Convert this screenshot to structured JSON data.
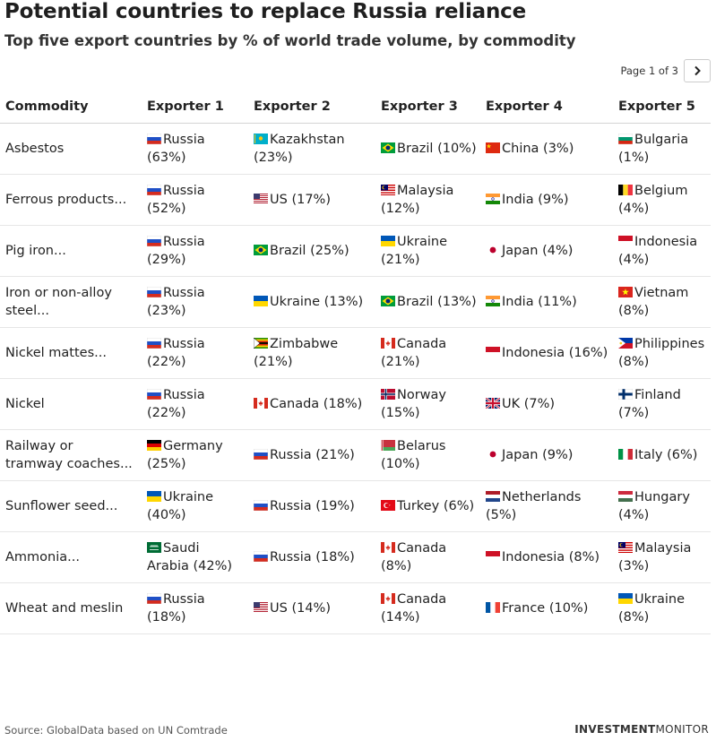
{
  "title": "Potential countries to replace Russia reliance",
  "subtitle": "Top five export countries by % of world trade volume, by commodity",
  "pagination": {
    "label": "Page 1 of 3"
  },
  "columns": [
    "Commodity",
    "Exporter 1",
    "Exporter 2",
    "Exporter 3",
    "Exporter 4",
    "Exporter 5"
  ],
  "rows": [
    {
      "commodity": "Asbestos",
      "exporters": [
        {
          "country": "Russia",
          "pct": "(63%)",
          "flag": "russia"
        },
        {
          "country": "Kazakhstan",
          "pct": "(23%)",
          "flag": "kazakhstan"
        },
        {
          "country": "Brazil",
          "pct": "(10%)",
          "flag": "brazil"
        },
        {
          "country": "China",
          "pct": "(3%)",
          "flag": "china"
        },
        {
          "country": "Bulgaria",
          "pct": "(1%)",
          "flag": "bulgaria"
        }
      ]
    },
    {
      "commodity": "Ferrous products...",
      "exporters": [
        {
          "country": "Russia",
          "pct": "(52%)",
          "flag": "russia"
        },
        {
          "country": "US",
          "pct": "(17%)",
          "flag": "us"
        },
        {
          "country": "Malaysia",
          "pct": "(12%)",
          "flag": "malaysia"
        },
        {
          "country": "India",
          "pct": "(9%)",
          "flag": "india"
        },
        {
          "country": "Belgium",
          "pct": "(4%)",
          "flag": "belgium"
        }
      ]
    },
    {
      "commodity": "Pig iron...",
      "exporters": [
        {
          "country": "Russia",
          "pct": "(29%)",
          "flag": "russia"
        },
        {
          "country": "Brazil",
          "pct": "(25%)",
          "flag": "brazil"
        },
        {
          "country": "Ukraine",
          "pct": "(21%)",
          "flag": "ukraine"
        },
        {
          "country": "Japan",
          "pct": "(4%)",
          "flag": "japan"
        },
        {
          "country": "Indonesia",
          "pct": "(4%)",
          "flag": "indonesia"
        }
      ]
    },
    {
      "commodity": "Iron or non-alloy steel...",
      "exporters": [
        {
          "country": "Russia",
          "pct": "(23%)",
          "flag": "russia"
        },
        {
          "country": "Ukraine",
          "pct": "(13%)",
          "flag": "ukraine"
        },
        {
          "country": "Brazil",
          "pct": "(13%)",
          "flag": "brazil"
        },
        {
          "country": "India",
          "pct": "(11%)",
          "flag": "india"
        },
        {
          "country": "Vietnam",
          "pct": "(8%)",
          "flag": "vietnam"
        }
      ]
    },
    {
      "commodity": "Nickel mattes...",
      "exporters": [
        {
          "country": "Russia",
          "pct": "(22%)",
          "flag": "russia"
        },
        {
          "country": "Zimbabwe",
          "pct": "(21%)",
          "flag": "zimbabwe"
        },
        {
          "country": "Canada",
          "pct": "(21%)",
          "flag": "canada"
        },
        {
          "country": "Indonesia",
          "pct": "(16%)",
          "flag": "indonesia"
        },
        {
          "country": "Philippines",
          "pct": "(8%)",
          "flag": "philippines"
        }
      ]
    },
    {
      "commodity": "Nickel",
      "exporters": [
        {
          "country": "Russia",
          "pct": "(22%)",
          "flag": "russia"
        },
        {
          "country": "Canada",
          "pct": "(18%)",
          "flag": "canada"
        },
        {
          "country": "Norway",
          "pct": "(15%)",
          "flag": "norway"
        },
        {
          "country": "UK",
          "pct": "(7%)",
          "flag": "uk"
        },
        {
          "country": "Finland",
          "pct": "(7%)",
          "flag": "finland"
        }
      ]
    },
    {
      "commodity": "Railway or tramway coaches...",
      "exporters": [
        {
          "country": "Germany",
          "pct": "(25%)",
          "flag": "germany"
        },
        {
          "country": "Russia",
          "pct": "(21%)",
          "flag": "russia"
        },
        {
          "country": "Belarus",
          "pct": "(10%)",
          "flag": "belarus"
        },
        {
          "country": "Japan",
          "pct": "(9%)",
          "flag": "japan"
        },
        {
          "country": "Italy",
          "pct": "(6%)",
          "flag": "italy"
        }
      ]
    },
    {
      "commodity": "Sunflower seed...",
      "exporters": [
        {
          "country": "Ukraine",
          "pct": "(40%)",
          "flag": "ukraine"
        },
        {
          "country": "Russia",
          "pct": "(19%)",
          "flag": "russia"
        },
        {
          "country": "Turkey",
          "pct": "(6%)",
          "flag": "turkey"
        },
        {
          "country": "Netherlands",
          "pct": "(5%)",
          "flag": "netherlands"
        },
        {
          "country": "Hungary",
          "pct": "(4%)",
          "flag": "hungary"
        }
      ]
    },
    {
      "commodity": "Ammonia...",
      "exporters": [
        {
          "country": "Saudi Arabia",
          "pct": "(42%)",
          "flag": "saudi"
        },
        {
          "country": "Russia",
          "pct": "(18%)",
          "flag": "russia"
        },
        {
          "country": "Canada",
          "pct": "(8%)",
          "flag": "canada"
        },
        {
          "country": "Indonesia",
          "pct": "(8%)",
          "flag": "indonesia"
        },
        {
          "country": "Malaysia",
          "pct": "(3%)",
          "flag": "malaysia"
        }
      ]
    },
    {
      "commodity": "Wheat and meslin",
      "exporters": [
        {
          "country": "Russia",
          "pct": "(18%)",
          "flag": "russia"
        },
        {
          "country": "US",
          "pct": "(14%)",
          "flag": "us"
        },
        {
          "country": "Canada",
          "pct": "(14%)",
          "flag": "canada"
        },
        {
          "country": "France",
          "pct": "(10%)",
          "flag": "france"
        },
        {
          "country": "Ukraine",
          "pct": "(8%)",
          "flag": "ukraine"
        }
      ]
    }
  ],
  "footer": {
    "source": "Source: GlobalData based on UN Comtrade",
    "logo_part1": "INVESTMENT",
    "logo_part2": "MONITOR"
  },
  "chart_data": {
    "type": "table",
    "title": "Potential countries to replace Russia reliance",
    "subtitle": "Top five export countries by % of world trade volume, by commodity",
    "columns": [
      "Commodity",
      "Exporter 1",
      "Exporter 2",
      "Exporter 3",
      "Exporter 4",
      "Exporter 5"
    ],
    "rows": [
      [
        "Asbestos",
        "Russia (63%)",
        "Kazakhstan (23%)",
        "Brazil (10%)",
        "China (3%)",
        "Bulgaria (1%)"
      ],
      [
        "Ferrous products...",
        "Russia (52%)",
        "US (17%)",
        "Malaysia (12%)",
        "India (9%)",
        "Belgium (4%)"
      ],
      [
        "Pig iron...",
        "Russia (29%)",
        "Brazil (25%)",
        "Ukraine (21%)",
        "Japan (4%)",
        "Indonesia (4%)"
      ],
      [
        "Iron or non-alloy steel...",
        "Russia (23%)",
        "Ukraine (13%)",
        "Brazil (13%)",
        "India (11%)",
        "Vietnam (8%)"
      ],
      [
        "Nickel mattes...",
        "Russia (22%)",
        "Zimbabwe (21%)",
        "Canada (21%)",
        "Indonesia (16%)",
        "Philippines (8%)"
      ],
      [
        "Nickel",
        "Russia (22%)",
        "Canada (18%)",
        "Norway (15%)",
        "UK (7%)",
        "Finland (7%)"
      ],
      [
        "Railway or tramway coaches...",
        "Germany (25%)",
        "Russia (21%)",
        "Belarus (10%)",
        "Japan (9%)",
        "Italy (6%)"
      ],
      [
        "Sunflower seed...",
        "Ukraine (40%)",
        "Russia (19%)",
        "Turkey (6%)",
        "Netherlands (5%)",
        "Hungary (4%)"
      ],
      [
        "Ammonia...",
        "Saudi Arabia (42%)",
        "Russia (18%)",
        "Canada (8%)",
        "Indonesia (8%)",
        "Malaysia (3%)"
      ],
      [
        "Wheat and meslin",
        "Russia (18%)",
        "US (14%)",
        "Canada (14%)",
        "France (10%)",
        "Ukraine (8%)"
      ]
    ]
  }
}
